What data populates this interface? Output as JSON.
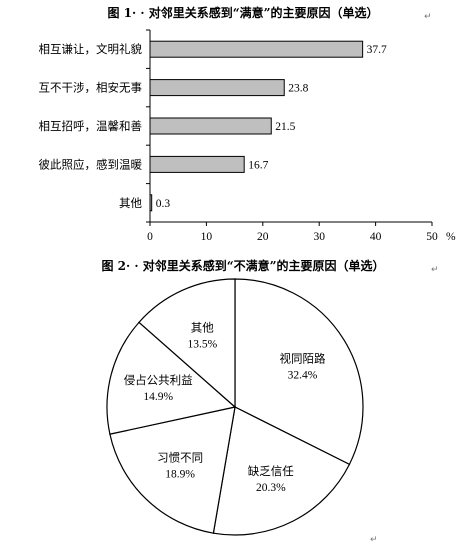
{
  "chart_data": [
    {
      "type": "bar",
      "orientation": "horizontal",
      "title": "图 1· · 对邻里关系感到“满意”的主要原因（单选）",
      "categories": [
        "相互谦让，文明礼貌",
        "互不干涉，相安无事",
        "相互招呼，温馨和善",
        "彼此照应，感到温暖",
        "其他"
      ],
      "values": [
        37.7,
        23.8,
        21.5,
        16.7,
        0.3
      ],
      "value_labels": [
        "37.7",
        "23.8",
        "21.5",
        "16.7",
        "0.3"
      ],
      "xticks": [
        "0",
        "10",
        "20",
        "30",
        "40",
        "50"
      ],
      "xlim": [
        0,
        50
      ],
      "unit": "%",
      "bar_color": "#bfbfbf",
      "grid": false
    },
    {
      "type": "pie",
      "title": "图 2· · 对邻里关系感到“不满意”的主要原因（单选）",
      "slices": [
        {
          "label": "视同陌路",
          "value": 32.4,
          "pct_label": "32.4%"
        },
        {
          "label": "缺乏信任",
          "value": 20.3,
          "pct_label": "20.3%"
        },
        {
          "label": "习惯不同",
          "value": 18.9,
          "pct_label": "18.9%"
        },
        {
          "label": "侵占公共利益",
          "value": 14.9,
          "pct_label": "14.9%"
        },
        {
          "label": "其他",
          "value": 13.5,
          "pct_label": "13.5%"
        }
      ],
      "fill_color": "#ffffff",
      "edge_color": "#000000"
    }
  ],
  "para_mark": "↵"
}
